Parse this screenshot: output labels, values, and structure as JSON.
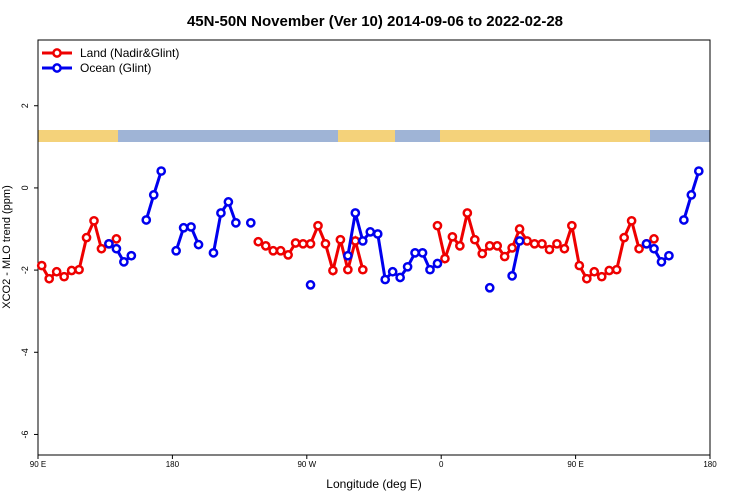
{
  "chart_data": {
    "type": "line",
    "title": "45N-50N November (Ver 10)   2014-09-06 to 2022-02-28",
    "x_label": "Longitude (deg E)",
    "y_label": "XCO2 - MLO trend (ppm)",
    "xlim": [
      90,
      540
    ],
    "xticks": [
      {
        "value": 90,
        "label": "90 E"
      },
      180,
      {
        "value": 270,
        "label": "90 W"
      },
      {
        "value": 360,
        "label": "0"
      },
      {
        "value": 450,
        "label": "90 E"
      },
      {
        "value": 540,
        "label": "180"
      }
    ],
    "ylim": [
      -6.5,
      3.6
    ],
    "yticks": [
      -6,
      -4,
      -2,
      0,
      2
    ],
    "grid": false,
    "legend": "top-left",
    "series": [
      {
        "name": "Land (Nadir&Glint)",
        "color": "#ee0000",
        "x": [
          92.5,
          97.5,
          102.5,
          107.5,
          112.5,
          117.5,
          122.5,
          127.5,
          132.5,
          137.5,
          142.5,
          null,
          237.5,
          242.5,
          247.5,
          252.5,
          257.5,
          262.5,
          267.5,
          272.5,
          277.5,
          282.5,
          287.5,
          292.5,
          297.5,
          302.5,
          307.5,
          null,
          357.5,
          362.5,
          367.5,
          372.5,
          377.5,
          382.5,
          387.5,
          392.5,
          397.5,
          402.5,
          407.5,
          412.5,
          417.5,
          422.5,
          427.5,
          432.5,
          437.5,
          442.5,
          447.5,
          452.5,
          457.5,
          462.5,
          467.5,
          472.5,
          477.5,
          482.5,
          487.5,
          492.5,
          497.5,
          502.5
        ],
        "values": [
          -1.89,
          -2.21,
          -2.04,
          -2.16,
          -2.01,
          -1.99,
          -1.21,
          -0.8,
          -1.48,
          -1.36,
          -1.24,
          null,
          -1.31,
          -1.41,
          -1.53,
          -1.53,
          -1.63,
          -1.34,
          -1.36,
          -1.36,
          -0.92,
          -1.36,
          -2.01,
          -1.26,
          -1.99,
          -1.29,
          -1.99,
          null,
          -0.92,
          -1.72,
          -1.19,
          -1.41,
          -0.61,
          -1.26,
          -1.6,
          -1.41,
          -1.41,
          -1.67,
          -1.46,
          -1.0,
          -1.29,
          -1.36,
          -1.36,
          -1.5,
          -1.36,
          -1.48,
          -0.92,
          -1.89,
          -2.21,
          -2.04,
          -2.16,
          -2.01,
          -1.99,
          -1.21,
          -0.8,
          -1.48,
          -1.36,
          -1.24
        ]
      },
      {
        "name": "Ocean (Glint)",
        "color": "#0000ee",
        "x": [
          137.5,
          142.5,
          147.5,
          152.5,
          null,
          162.5,
          167.5,
          172.5,
          null,
          182.5,
          187.5,
          192.5,
          197.5,
          null,
          207.5,
          212.5,
          217.5,
          222.5,
          null,
          232.5,
          null,
          272.5,
          null,
          297.5,
          302.5,
          307.5,
          312.5,
          317.5,
          322.5,
          327.5,
          332.5,
          337.5,
          342.5,
          347.5,
          352.5,
          357.5,
          null,
          392.5,
          null,
          407.5,
          412.5,
          null,
          497.5,
          502.5,
          507.5,
          512.5,
          null,
          522.5,
          527.5,
          532.5
        ],
        "values": [
          -1.36,
          -1.48,
          -1.8,
          -1.65,
          null,
          -0.78,
          -0.17,
          0.41,
          null,
          -1.53,
          -0.97,
          -0.95,
          -1.38,
          null,
          -1.58,
          -0.61,
          -0.34,
          -0.85,
          null,
          -0.85,
          null,
          -2.36,
          null,
          -1.65,
          -0.61,
          -1.29,
          -1.07,
          -1.12,
          -2.23,
          -2.04,
          -2.18,
          -1.92,
          -1.58,
          -1.58,
          -1.99,
          -1.84,
          null,
          -2.43,
          null,
          -2.14,
          -1.29,
          null,
          -1.36,
          -1.48,
          -1.8,
          -1.65,
          null,
          -0.78,
          -0.17,
          0.41
        ]
      }
    ]
  }
}
